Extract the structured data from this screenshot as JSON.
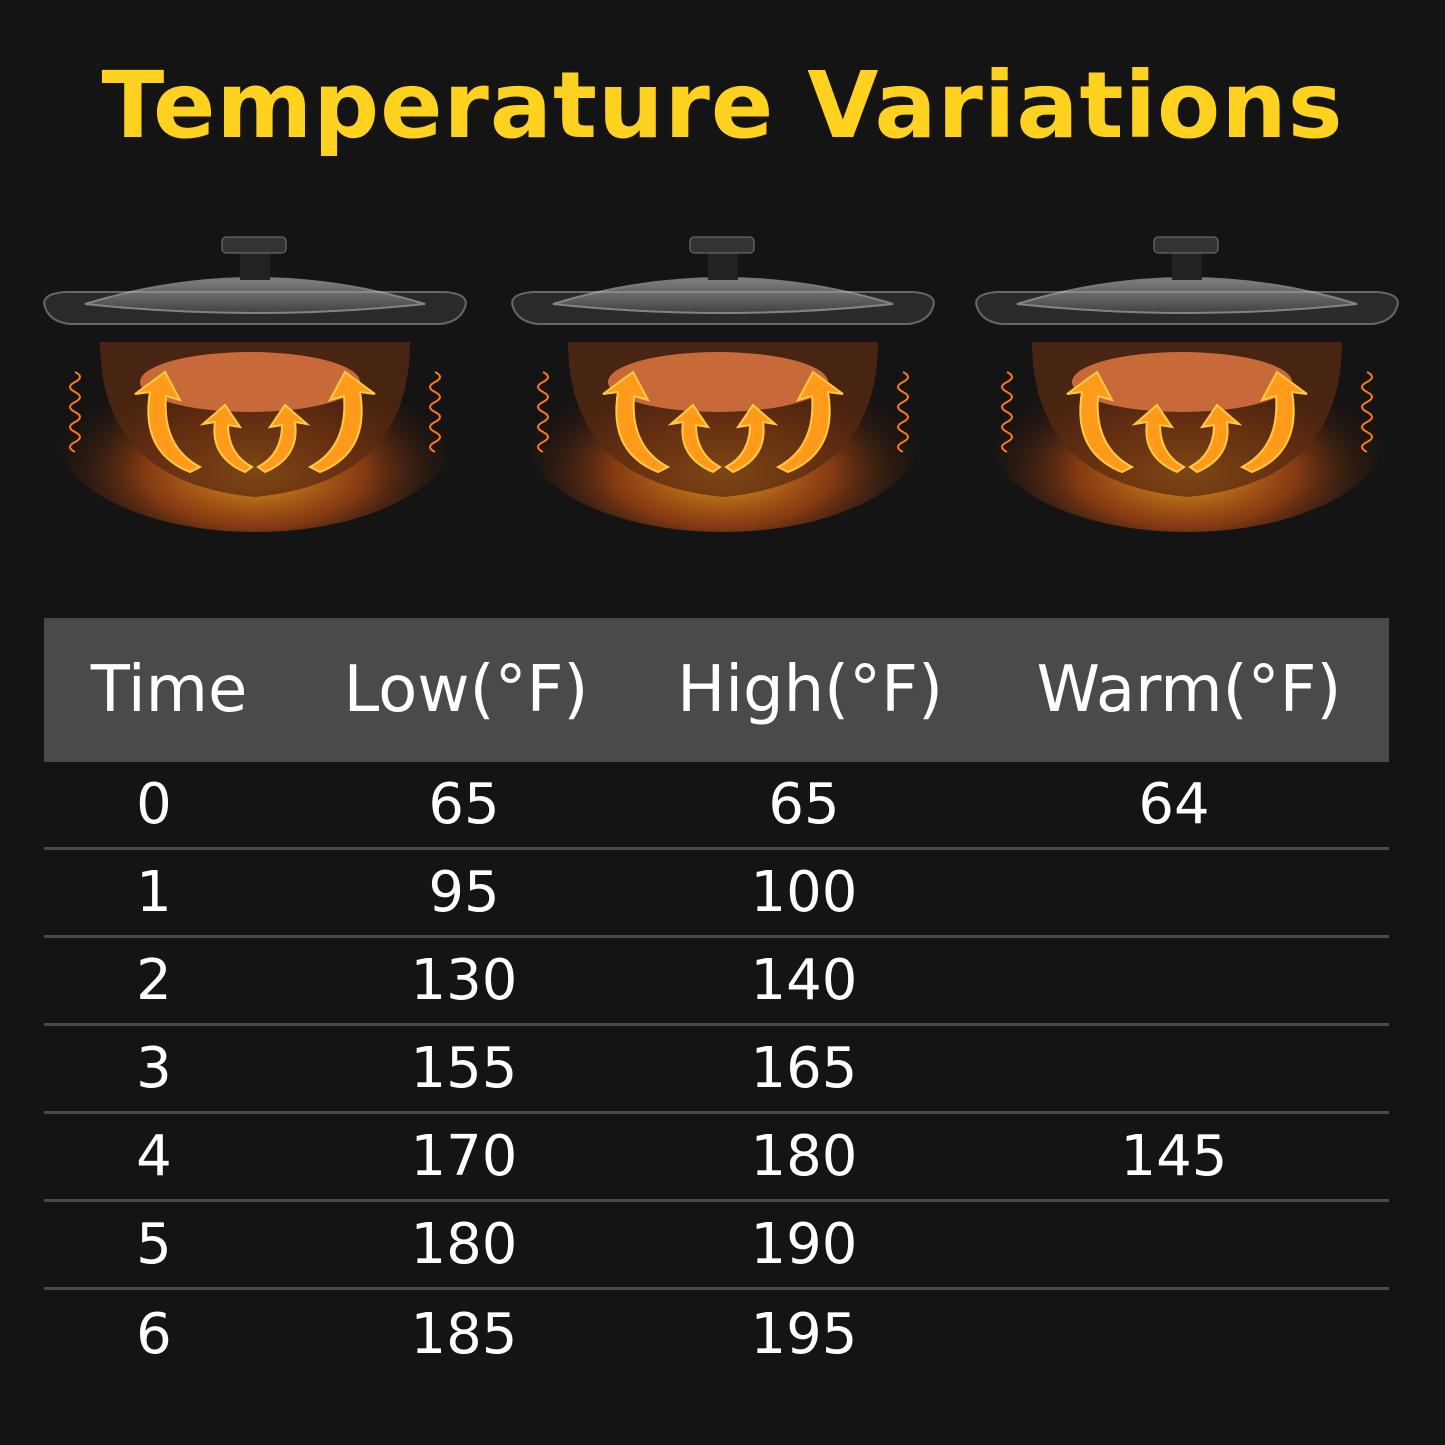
{
  "title": "Temperature Variations",
  "colors": {
    "title": "#FFD21F",
    "background": "#141414",
    "header_bg": "#4a4a4a",
    "text": "#ffffff",
    "heat": "#FF9A1A"
  },
  "illustrations": [
    "slow-cooker-low",
    "slow-cooker-high",
    "slow-cooker-warm"
  ],
  "table": {
    "headers": [
      "Time",
      "Low(°F)",
      "High(°F)",
      "Warm(°F)"
    ],
    "rows": [
      [
        "0",
        "65",
        "65",
        "64"
      ],
      [
        "1",
        "95",
        "100",
        ""
      ],
      [
        "2",
        "130",
        "140",
        ""
      ],
      [
        "3",
        "155",
        "165",
        ""
      ],
      [
        "4",
        "170",
        "180",
        "145"
      ],
      [
        "5",
        "180",
        "190",
        ""
      ],
      [
        "6",
        "185",
        "195",
        ""
      ]
    ]
  }
}
